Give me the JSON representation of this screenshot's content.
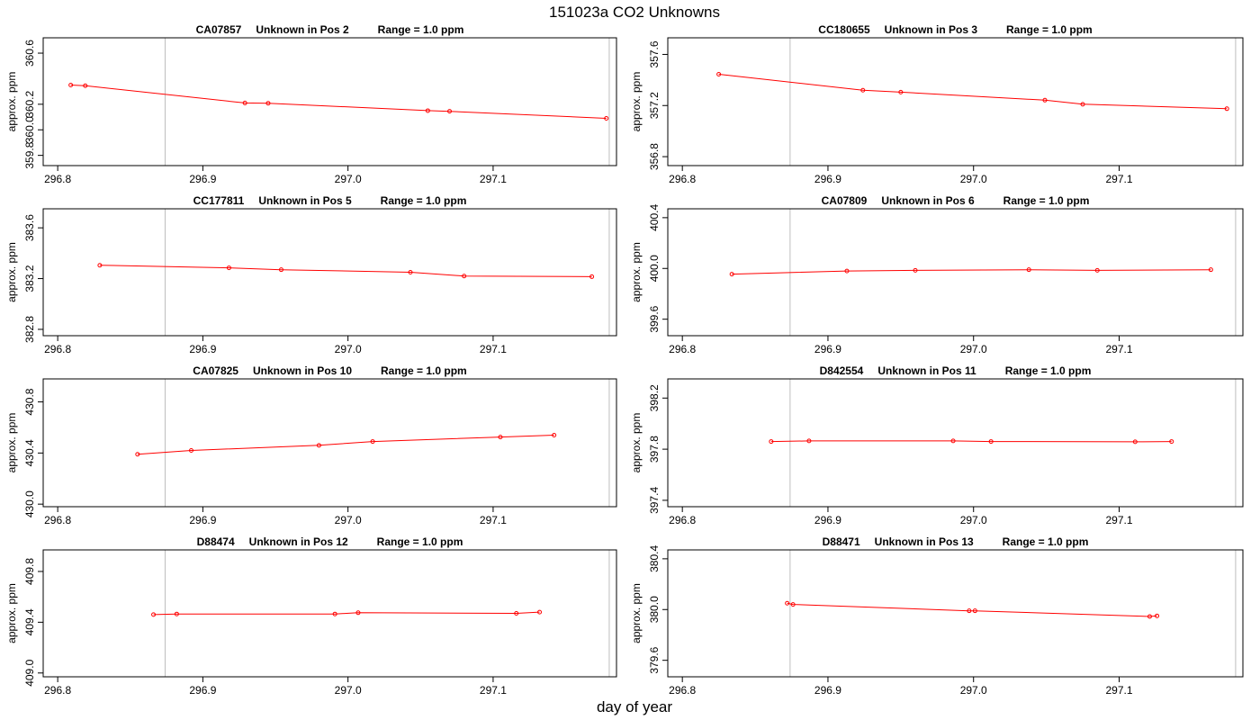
{
  "figure": {
    "title": "151023a  CO2 Unknowns",
    "xlabel": "day of year"
  },
  "chart_data": [
    {
      "type": "line",
      "title_id": "CA07857",
      "title_pos": "Unknown in Pos 2",
      "title_range": "Range = 1.0 ppm",
      "ylabel": "approx. ppm",
      "xlim": [
        296.79,
        297.185
      ],
      "ylim": [
        359.72,
        360.72
      ],
      "xticks": [
        296.8,
        296.9,
        297.0,
        297.1
      ],
      "xtick_labels": [
        "296.8",
        "296.9",
        "297.0",
        "297.1"
      ],
      "yticks": [
        359.8,
        360.0,
        360.2,
        360.6
      ],
      "ytick_labels": [
        "359.8",
        "360.0",
        "360.2",
        "360.6"
      ],
      "vlines": [
        296.874,
        297.18
      ],
      "line_color": "#ff0000",
      "vline_color": "#bebebe",
      "x": [
        296.809,
        296.819,
        296.929,
        296.945,
        297.055,
        297.07,
        297.178
      ],
      "y": [
        360.35,
        360.345,
        360.21,
        360.208,
        360.15,
        360.145,
        360.09
      ]
    },
    {
      "type": "line",
      "title_id": "CC180655",
      "title_pos": "Unknown in Pos 3",
      "title_range": "Range = 1.0 ppm",
      "ylabel": "approx. ppm",
      "xlim": [
        296.79,
        297.185
      ],
      "ylim": [
        356.73,
        357.73
      ],
      "xticks": [
        296.8,
        296.9,
        297.0,
        297.1
      ],
      "xtick_labels": [
        "296.8",
        "296.9",
        "297.0",
        "297.1"
      ],
      "yticks": [
        356.8,
        357.2,
        357.6
      ],
      "ytick_labels": [
        "356.8",
        "357.2",
        "357.6"
      ],
      "vlines": [
        296.874,
        297.18
      ],
      "line_color": "#ff0000",
      "vline_color": "#bebebe",
      "x": [
        296.825,
        296.924,
        296.95,
        297.049,
        297.075,
        297.174
      ],
      "y": [
        357.445,
        357.32,
        357.305,
        357.242,
        357.21,
        357.175
      ]
    },
    {
      "type": "line",
      "title_id": "CC177811",
      "title_pos": "Unknown in Pos 5",
      "title_range": "Range = 1.0 ppm",
      "ylabel": "approx. ppm",
      "xlim": [
        296.79,
        297.185
      ],
      "ylim": [
        382.75,
        383.75
      ],
      "xticks": [
        296.8,
        296.9,
        297.0,
        297.1
      ],
      "xtick_labels": [
        "296.8",
        "296.9",
        "297.0",
        "297.1"
      ],
      "yticks": [
        382.8,
        383.2,
        383.6
      ],
      "ytick_labels": [
        "382.8",
        "383.2",
        "383.6"
      ],
      "vlines": [
        296.874,
        297.18
      ],
      "line_color": "#ff0000",
      "vline_color": "#bebebe",
      "x": [
        296.829,
        296.918,
        296.954,
        297.043,
        297.08,
        297.168
      ],
      "y": [
        383.305,
        383.285,
        383.27,
        383.25,
        383.22,
        383.215
      ]
    },
    {
      "type": "line",
      "title_id": "CA07809",
      "title_pos": "Unknown in Pos 6",
      "title_range": "Range = 1.0 ppm",
      "ylabel": "approx. ppm",
      "xlim": [
        296.79,
        297.185
      ],
      "ylim": [
        399.47,
        400.47
      ],
      "xticks": [
        296.8,
        296.9,
        297.0,
        297.1
      ],
      "xtick_labels": [
        "296.8",
        "296.9",
        "297.0",
        "297.1"
      ],
      "yticks": [
        399.6,
        400.0,
        400.4
      ],
      "ytick_labels": [
        "399.6",
        "400.0",
        "400.4"
      ],
      "vlines": [
        296.874,
        297.18
      ],
      "line_color": "#ff0000",
      "vline_color": "#bebebe",
      "x": [
        296.834,
        296.913,
        296.96,
        297.038,
        297.085,
        297.163
      ],
      "y": [
        399.955,
        399.98,
        399.985,
        399.99,
        399.985,
        399.99
      ]
    },
    {
      "type": "line",
      "title_id": "CA07825",
      "title_pos": "Unknown in Pos 10",
      "title_range": "Range = 1.0 ppm",
      "ylabel": "approx. ppm",
      "xlim": [
        296.79,
        297.185
      ],
      "ylim": [
        429.98,
        430.98
      ],
      "xticks": [
        296.8,
        296.9,
        297.0,
        297.1
      ],
      "xtick_labels": [
        "296.8",
        "296.9",
        "297.0",
        "297.1"
      ],
      "yticks": [
        430.0,
        430.4,
        430.8
      ],
      "ytick_labels": [
        "430.0",
        "430.4",
        "430.8"
      ],
      "vlines": [
        296.874,
        297.18
      ],
      "line_color": "#ff0000",
      "vline_color": "#bebebe",
      "x": [
        296.855,
        296.892,
        296.98,
        297.017,
        297.105,
        297.142
      ],
      "y": [
        430.39,
        430.42,
        430.46,
        430.49,
        430.525,
        430.54
      ]
    },
    {
      "type": "line",
      "title_id": "D842554",
      "title_pos": "Unknown in Pos 11",
      "title_range": "Range = 1.0 ppm",
      "ylabel": "approx. ppm",
      "xlim": [
        296.79,
        297.185
      ],
      "ylim": [
        397.35,
        398.35
      ],
      "xticks": [
        296.8,
        296.9,
        297.0,
        297.1
      ],
      "xtick_labels": [
        "296.8",
        "296.9",
        "297.0",
        "297.1"
      ],
      "yticks": [
        397.4,
        397.8,
        398.2
      ],
      "ytick_labels": [
        "397.4",
        "397.8",
        "398.2"
      ],
      "vlines": [
        296.874,
        297.18
      ],
      "line_color": "#ff0000",
      "vline_color": "#bebebe",
      "x": [
        296.861,
        296.887,
        296.986,
        297.012,
        297.111,
        297.136
      ],
      "y": [
        397.86,
        397.865,
        397.865,
        397.86,
        397.858,
        397.86
      ]
    },
    {
      "type": "line",
      "title_id": "D88474",
      "title_pos": "Unknown in Pos 12",
      "title_range": "Range = 1.0 ppm",
      "ylabel": "approx. ppm",
      "xlim": [
        296.79,
        297.185
      ],
      "ylim": [
        408.97,
        409.97
      ],
      "xticks": [
        296.8,
        296.9,
        297.0,
        297.1
      ],
      "xtick_labels": [
        "296.8",
        "296.9",
        "297.0",
        "297.1"
      ],
      "yticks": [
        409.0,
        409.4,
        409.8
      ],
      "ytick_labels": [
        "409.0",
        "409.4",
        "409.8"
      ],
      "vlines": [
        296.874,
        297.18
      ],
      "line_color": "#ff0000",
      "vline_color": "#bebebe",
      "x": [
        296.866,
        296.882,
        296.991,
        297.007,
        297.116,
        297.132
      ],
      "y": [
        409.46,
        409.465,
        409.465,
        409.475,
        409.47,
        409.48
      ]
    },
    {
      "type": "line",
      "title_id": "D88471",
      "title_pos": "Unknown in Pos 13",
      "title_range": "Range = 1.0 ppm",
      "ylabel": "approx. ppm",
      "xlim": [
        296.79,
        297.185
      ],
      "ylim": [
        379.47,
        380.47
      ],
      "xticks": [
        296.8,
        296.9,
        297.0,
        297.1
      ],
      "xtick_labels": [
        "296.8",
        "296.9",
        "297.0",
        "297.1"
      ],
      "yticks": [
        379.6,
        380.0,
        380.4
      ],
      "ytick_labels": [
        "379.6",
        "380.0",
        "380.4"
      ],
      "vlines": [
        296.874,
        297.18
      ],
      "line_color": "#ff0000",
      "vline_color": "#bebebe",
      "x": [
        296.872,
        296.876,
        296.997,
        297.001,
        297.121,
        297.126
      ],
      "y": [
        380.05,
        380.04,
        379.99,
        379.99,
        379.945,
        379.95
      ]
    }
  ]
}
